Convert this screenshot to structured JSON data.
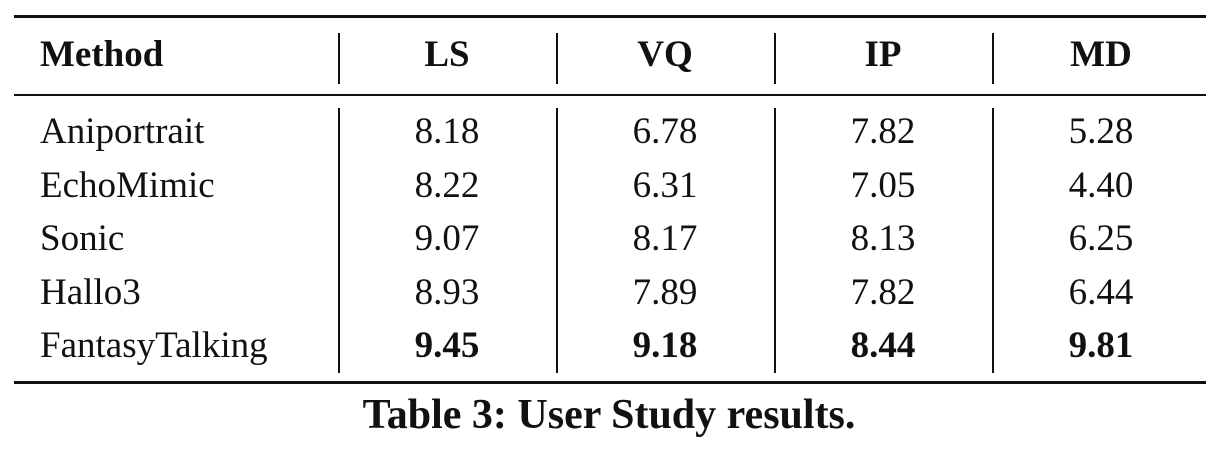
{
  "table": {
    "header": [
      "Method",
      "LS",
      "VQ",
      "IP",
      "MD"
    ],
    "rows": [
      [
        "Aniportrait",
        "8.18",
        "6.78",
        "7.82",
        "5.28"
      ],
      [
        "EchoMimic",
        "8.22",
        "6.31",
        "7.05",
        "4.40"
      ],
      [
        "Sonic",
        "9.07",
        "8.17",
        "8.13",
        "6.25"
      ],
      [
        "Hallo3",
        "8.93",
        "7.89",
        "7.82",
        "6.44"
      ],
      [
        "FantasyTalking",
        "9.45",
        "9.18",
        "8.44",
        "9.81"
      ]
    ]
  },
  "caption": "Table 3: User Study results."
}
